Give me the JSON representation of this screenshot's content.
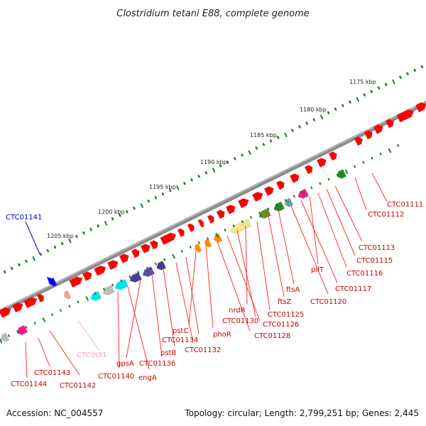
{
  "header": {
    "title": "Clostridium tetani E88, complete genome"
  },
  "footer": {
    "accession": "Accession: NC_004557",
    "summary": "Topology: circular; Length: 2,799,251 bp; Genes: 2,445"
  },
  "colors": {
    "backbone": "#8c8c8c",
    "tick": "#1e7d1e",
    "default_gene": "#ff0000",
    "label": "#cc0000",
    "leader": "#ff3333",
    "highlight_label": "#0000cc",
    "rna_label": "#ff99cc"
  },
  "scale_labels": [
    "1175 kbp",
    "1180 kbp",
    "1185 kbp",
    "1190 kbp",
    "1195 kbp",
    "1200 kbp",
    "1205 kbp"
  ],
  "gene_labels": [
    {
      "text": "CTC01111",
      "color": "#cc0000"
    },
    {
      "text": "CTC01112",
      "color": "#cc0000"
    },
    {
      "text": "CTC01113",
      "color": "#cc0000"
    },
    {
      "text": "CTC01115",
      "color": "#cc0000"
    },
    {
      "text": "CTC01116",
      "color": "#cc0000"
    },
    {
      "text": "pilT",
      "color": "#cc0000"
    },
    {
      "text": "CTC01117",
      "color": "#cc0000"
    },
    {
      "text": "CTC01120",
      "color": "#cc0000"
    },
    {
      "text": "ftsA",
      "color": "#cc0000"
    },
    {
      "text": "ftsZ",
      "color": "#cc0000"
    },
    {
      "text": "CTC01125",
      "color": "#cc0000"
    },
    {
      "text": "nrdR",
      "color": "#cc0000"
    },
    {
      "text": "CTC01130",
      "color": "#cc0000"
    },
    {
      "text": "CTC01126",
      "color": "#cc0000"
    },
    {
      "text": "CTC01128",
      "color": "#cc0000"
    },
    {
      "text": "phoR",
      "color": "#cc0000"
    },
    {
      "text": "pstC",
      "color": "#cc0000"
    },
    {
      "text": "CTC01134",
      "color": "#cc0000"
    },
    {
      "text": "CTC01132",
      "color": "#cc0000"
    },
    {
      "text": "pstB",
      "color": "#cc0000"
    },
    {
      "text": "CTC01136",
      "color": "#cc0000"
    },
    {
      "text": "gpsA",
      "color": "#cc0000"
    },
    {
      "text": "engA",
      "color": "#cc0000"
    },
    {
      "text": "CTC01140",
      "color": "#cc0000"
    },
    {
      "text": "CTC0t31",
      "color": "#ff99cc"
    },
    {
      "text": "CTC01143",
      "color": "#cc0000"
    },
    {
      "text": "CTC01142",
      "color": "#cc0000"
    },
    {
      "text": "CTC01144",
      "color": "#cc0000"
    },
    {
      "text": "CTC01141",
      "color": "#0000cc"
    }
  ]
}
